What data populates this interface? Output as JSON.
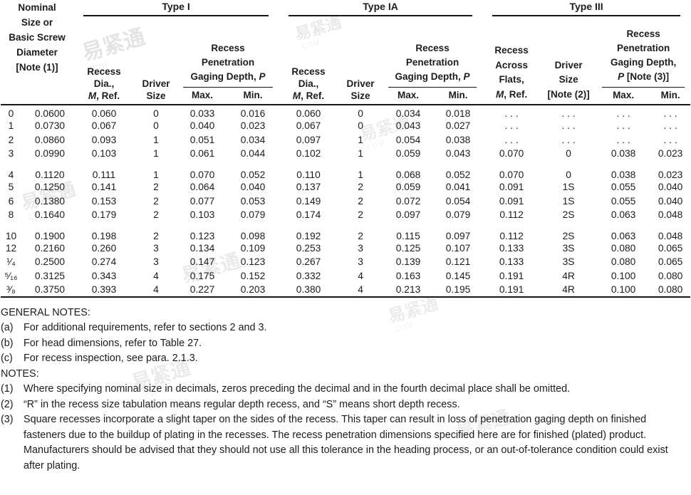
{
  "watermark": {
    "text": "易紧通",
    "subtext": ".COM"
  },
  "table": {
    "groups": [
      {
        "title": "Type I"
      },
      {
        "title": "Type IA"
      },
      {
        "title": "Type III"
      }
    ],
    "nominal_header_lines": [
      "Nominal",
      "Size or",
      "Basic Screw",
      "Diameter",
      "[Note (1)]"
    ],
    "col": {
      "recess": [
        "Recess",
        "Dia.,"
      ],
      "m": "M",
      "m_suffix": ", Ref.",
      "driver": [
        "Driver",
        "Size"
      ],
      "pen": [
        "Recess",
        "Penetration"
      ],
      "pen_last": "Gaging Depth, ",
      "p": "P",
      "max": "Max.",
      "min": "Min."
    },
    "col3": {
      "recess": [
        "Recess",
        "Across",
        "Flats,"
      ],
      "driver": [
        "Driver",
        "Size",
        "[Note (2)]"
      ],
      "pen": [
        "Recess",
        "Penetration",
        "Gaging Depth,"
      ],
      "p": "P",
      "p_suffix": " [Note (3)]"
    },
    "row_groups": [
      [
        [
          "0",
          "0.0600",
          "0.060",
          "0",
          "0.033",
          "0.016",
          "0.060",
          "0",
          "0.034",
          "0.018",
          ". . .",
          ". . .",
          ". . .",
          ". . ."
        ],
        [
          "1",
          "0.0730",
          "0.067",
          "0",
          "0.040",
          "0.023",
          "0.067",
          "0",
          "0.043",
          "0.027",
          ". . .",
          ". . .",
          ". . .",
          ". . ."
        ],
        [
          "2",
          "0.0860",
          "0.093",
          "1",
          "0.051",
          "0.034",
          "0.097",
          "1",
          "0.054",
          "0.038",
          ". . .",
          ". . .",
          ". . .",
          ". . ."
        ],
        [
          "3",
          "0.0990",
          "0.103",
          "1",
          "0.061",
          "0.044",
          "0.102",
          "1",
          "0.059",
          "0.043",
          "0.070",
          "0",
          "0.038",
          "0.023"
        ]
      ],
      [
        [
          "4",
          "0.1120",
          "0.111",
          "1",
          "0.070",
          "0.052",
          "0.110",
          "1",
          "0.068",
          "0.052",
          "0.070",
          "0",
          "0.038",
          "0.023"
        ],
        [
          "5",
          "0.1250",
          "0.141",
          "2",
          "0.064",
          "0.040",
          "0.137",
          "2",
          "0.059",
          "0.041",
          "0.091",
          "1S",
          "0.055",
          "0.040"
        ],
        [
          "6",
          "0.1380",
          "0.153",
          "2",
          "0.077",
          "0.053",
          "0.149",
          "2",
          "0.072",
          "0.054",
          "0.091",
          "1S",
          "0.055",
          "0.040"
        ],
        [
          "8",
          "0.1640",
          "0.179",
          "2",
          "0.103",
          "0.079",
          "0.174",
          "2",
          "0.097",
          "0.079",
          "0.112",
          "2S",
          "0.063",
          "0.048"
        ]
      ],
      [
        [
          "10",
          "0.1900",
          "0.198",
          "2",
          "0.123",
          "0.098",
          "0.192",
          "2",
          "0.115",
          "0.097",
          "0.112",
          "2S",
          "0.063",
          "0.048"
        ],
        [
          "12",
          "0.2160",
          "0.260",
          "3",
          "0.134",
          "0.109",
          "0.253",
          "3",
          "0.125",
          "0.107",
          "0.133",
          "3S",
          "0.080",
          "0.065"
        ],
        [
          "¹⁄₄",
          "0.2500",
          "0.274",
          "3",
          "0.147",
          "0.123",
          "0.267",
          "3",
          "0.139",
          "0.121",
          "0.133",
          "3S",
          "0.080",
          "0.065"
        ],
        [
          "⁵⁄₁₆",
          "0.3125",
          "0.343",
          "4",
          "0.175",
          "0.152",
          "0.332",
          "4",
          "0.163",
          "0.145",
          "0.191",
          "4R",
          "0.100",
          "0.080"
        ],
        [
          "³⁄₈",
          "0.3750",
          "0.393",
          "4",
          "0.227",
          "0.203",
          "0.380",
          "4",
          "0.213",
          "0.195",
          "0.191",
          "4R",
          "0.100",
          "0.080"
        ]
      ]
    ]
  },
  "notes": {
    "general_title": "GENERAL NOTES:",
    "general": [
      {
        "marker": "(a)",
        "text": "For additional requirements, refer to sections 2 and 3."
      },
      {
        "marker": "(b)",
        "text": "For head dimensions, refer to Table 27."
      },
      {
        "marker": "(c)",
        "text": "For recess inspection, see para. 2.1.3."
      }
    ],
    "notes_title": "NOTES:",
    "numbered": [
      {
        "marker": "(1)",
        "text": "Where specifying nominal size in decimals, zeros preceding the decimal and in the fourth decimal place shall be omitted."
      },
      {
        "marker": "(2)",
        "text": "“R” in the recess size tabulation means regular depth recess, and “S” means short depth recess."
      },
      {
        "marker": "(3)",
        "text": "Square recesses incorporate a slight taper on the sides of the recess. This taper can result in loss of penetration gaging depth on finished fasteners due to the buildup of plating in the recesses. The recess penetration dimensions specified here are for finished (plated) product. Manufacturers should be advised that they should not use all this tolerance in the heading process, or an out-of-tolerance condition could exist after plating."
      }
    ]
  }
}
